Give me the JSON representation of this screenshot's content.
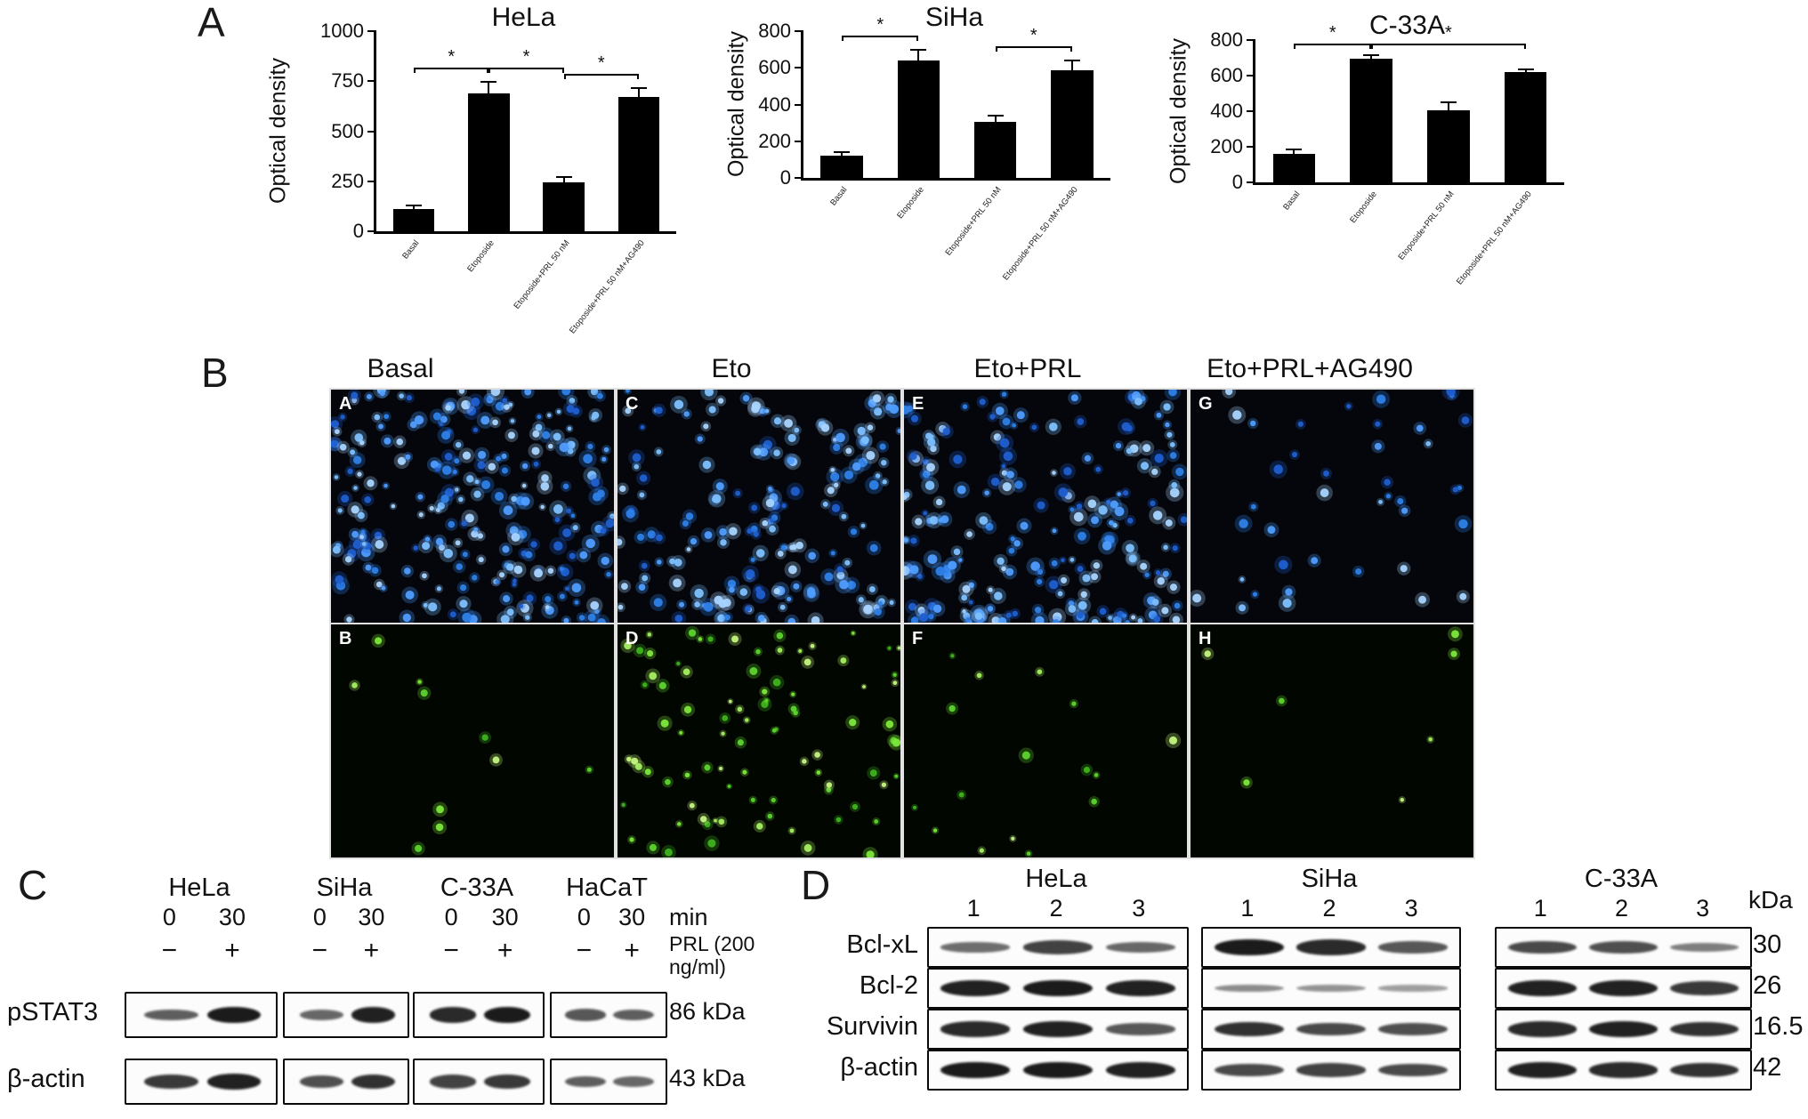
{
  "panels": {
    "a": {
      "label": "A"
    },
    "b": {
      "label": "B",
      "column_titles": [
        "Basal",
        "Eto",
        "Eto+PRL",
        "Eto+PRL+AG490"
      ],
      "stain_colors": {
        "blue": "#4f9dff",
        "green": "#7ce83a"
      },
      "images": [
        {
          "label": "A",
          "stain": "blue",
          "dots": 240,
          "bias": "uniform"
        },
        {
          "label": "C",
          "stain": "blue",
          "dots": 175,
          "bias": "uniform"
        },
        {
          "label": "E",
          "stain": "blue",
          "dots": 205,
          "bias": "bottom"
        },
        {
          "label": "G",
          "stain": "blue",
          "dots": 40,
          "bias": "uniform"
        },
        {
          "label": "B",
          "stain": "green",
          "dots": 10,
          "bias": "uniform"
        },
        {
          "label": "D",
          "stain": "green",
          "dots": 88,
          "bias": "uniform"
        },
        {
          "label": "F",
          "stain": "green",
          "dots": 16,
          "bias": "uniform"
        },
        {
          "label": "H",
          "stain": "green",
          "dots": 7,
          "bias": "uniform"
        }
      ]
    },
    "c": {
      "label": "C",
      "cell_lines": [
        "HeLa",
        "SiHa",
        "C-33A",
        "HaCaT"
      ],
      "time_points": [
        "0",
        "30"
      ],
      "time_unit": "min",
      "treatment_signs": [
        "−",
        "+"
      ],
      "treatment_label_lines": [
        "PRL (200",
        "ng/ml)"
      ],
      "rows": [
        {
          "protein": "pSTAT3",
          "kda": "86 kDa",
          "bands": [
            [
              0.5,
              0.95
            ],
            [
              0.45,
              0.9
            ],
            [
              0.85,
              0.95
            ],
            [
              0.55,
              0.5
            ]
          ]
        },
        {
          "protein": "β-actin",
          "kda": "43 kDa",
          "bands": [
            [
              0.75,
              0.9
            ],
            [
              0.6,
              0.8
            ],
            [
              0.7,
              0.75
            ],
            [
              0.5,
              0.45
            ]
          ]
        }
      ]
    },
    "d": {
      "label": "D",
      "cell_lines": [
        "HeLa",
        "SiHa",
        "C-33A"
      ],
      "lane_numbers": [
        "1",
        "2",
        "3"
      ],
      "kda_header": "kDa",
      "rows": [
        {
          "protein": "Bcl-xL",
          "kda": "30",
          "bands": [
            [
              0.4,
              0.7,
              0.45
            ],
            [
              0.95,
              0.85,
              0.55
            ],
            [
              0.65,
              0.6,
              0.3
            ]
          ]
        },
        {
          "protein": "Bcl-2",
          "kda": "26",
          "bands": [
            [
              0.9,
              0.95,
              0.9
            ],
            [
              0.2,
              0.15,
              0.08
            ],
            [
              0.9,
              0.9,
              0.75
            ]
          ]
        },
        {
          "protein": "Survivin",
          "kda": "16.5",
          "bands": [
            [
              0.85,
              0.9,
              0.55
            ],
            [
              0.8,
              0.65,
              0.6
            ],
            [
              0.85,
              0.9,
              0.8
            ]
          ]
        },
        {
          "protein": "β-actin",
          "kda": "42",
          "bands": [
            [
              0.95,
              0.95,
              0.9
            ],
            [
              0.65,
              0.7,
              0.65
            ],
            [
              0.9,
              0.85,
              0.8
            ]
          ]
        }
      ]
    }
  },
  "chart_data": [
    {
      "type": "bar",
      "title": "HeLa",
      "xlabel": "",
      "ylabel": "Optical density",
      "ylim": [
        0,
        1000
      ],
      "yticks": [
        0,
        250,
        500,
        750,
        1000
      ],
      "categories": [
        "Basal",
        "Etoposide",
        "Etoposide+PRL 50 nM",
        "Etoposide+PRL 50 nM+AG490"
      ],
      "values": [
        110,
        690,
        245,
        670
      ],
      "errors": [
        18,
        55,
        25,
        45
      ],
      "significance": [
        {
          "from": 0,
          "to": 1,
          "label": "*"
        },
        {
          "from": 1,
          "to": 2,
          "label": "*"
        },
        {
          "from": 2,
          "to": 3,
          "label": "*"
        }
      ],
      "bar_color": "#000000",
      "grid": false,
      "legend": "none"
    },
    {
      "type": "bar",
      "title": "SiHa",
      "xlabel": "",
      "ylabel": "Optical density",
      "ylim": [
        0,
        800
      ],
      "yticks": [
        0,
        200,
        400,
        600,
        800
      ],
      "categories": [
        "Basal",
        "Etoposide",
        "Etoposide+PRL 50 nM",
        "Etoposide+PRL 50 nM+AG490"
      ],
      "values": [
        120,
        640,
        305,
        585
      ],
      "errors": [
        20,
        60,
        35,
        55
      ],
      "significance": [
        {
          "from": 0,
          "to": 1,
          "label": "*"
        },
        {
          "from": 2,
          "to": 3,
          "label": "*"
        }
      ],
      "bar_color": "#000000",
      "grid": false,
      "legend": "none"
    },
    {
      "type": "bar",
      "title": "C-33A",
      "xlabel": "",
      "ylabel": "Optical density",
      "ylim": [
        0,
        800
      ],
      "yticks": [
        0,
        200,
        400,
        600,
        800
      ],
      "categories": [
        "Basal",
        "Etoposide",
        "Etoposide+PRL 50 nM",
        "Etoposide+PRL 50 nM+AG490"
      ],
      "values": [
        160,
        695,
        405,
        620
      ],
      "errors": [
        25,
        20,
        45,
        15
      ],
      "significance": [
        {
          "from": 0,
          "to": 1,
          "label": "*"
        },
        {
          "from": 1,
          "to": 3,
          "label": "*"
        }
      ],
      "bar_color": "#000000",
      "grid": false,
      "legend": "none"
    }
  ]
}
